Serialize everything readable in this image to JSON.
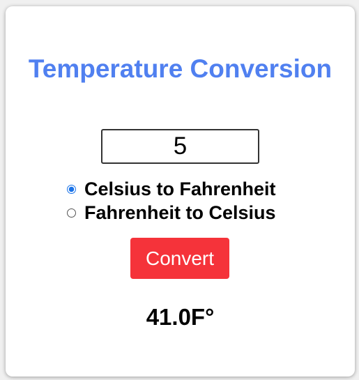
{
  "title": "Temperature Conversion",
  "input": {
    "value": "5"
  },
  "options": [
    {
      "label": "Celsius to Fahrenheit",
      "selected": true
    },
    {
      "label": "Fahrenheit to Celsius",
      "selected": false
    }
  ],
  "convert_button": {
    "label": "Convert"
  },
  "result": {
    "text": "41.0F°"
  },
  "colors": {
    "title": "#5080f0",
    "button": "#f5333a",
    "radio_accent": "#1a73e8"
  }
}
